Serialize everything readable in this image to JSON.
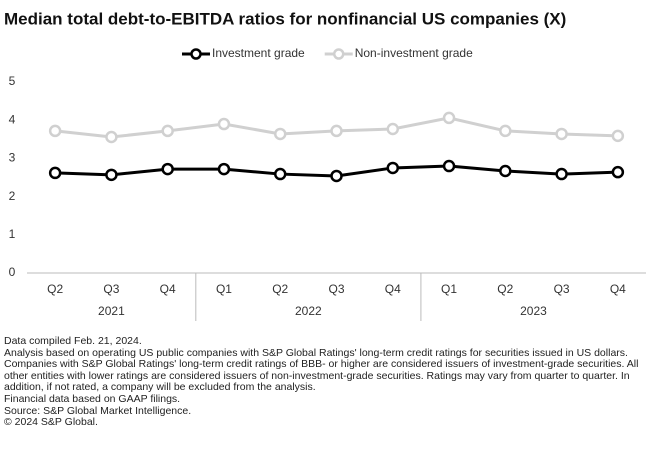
{
  "chart_data": {
    "type": "line",
    "title": "Median total debt-to-EBITDA ratios for nonfinancial US companies (X)",
    "groups": [
      {
        "label": "2021",
        "categories": [
          "Q2",
          "Q3",
          "Q4"
        ]
      },
      {
        "label": "2022",
        "categories": [
          "Q1",
          "Q2",
          "Q3",
          "Q4"
        ]
      },
      {
        "label": "2023",
        "categories": [
          "Q1",
          "Q2",
          "Q3",
          "Q4"
        ]
      }
    ],
    "series": [
      {
        "name": "Investment grade",
        "color": "#000000",
        "values": [
          2.62,
          2.57,
          2.72,
          2.72,
          2.59,
          2.54,
          2.75,
          2.8,
          2.67,
          2.59,
          2.64
        ]
      },
      {
        "name": "Non-investment grade",
        "color": "#d0d0d0",
        "values": [
          3.72,
          3.56,
          3.72,
          3.9,
          3.64,
          3.72,
          3.77,
          4.06,
          3.72,
          3.64,
          3.59
        ]
      }
    ],
    "ylim": [
      0,
      5
    ],
    "yticks": [
      0,
      1,
      2,
      3,
      4,
      5
    ],
    "grid": false,
    "legend": "top"
  },
  "notes": [
    "Data compiled Feb. 21, 2024.",
    "Analysis based on operating US public companies with S&P Global Ratings' long-term credit ratings for securities issued in US dollars.",
    "Companies with S&P Global Ratings' long-term credit ratings of BBB- or higher are considered issuers of investment-grade securities. All other entities with lower ratings are considered issuers of non-investment-grade securities. Ratings may vary from quarter to quarter. In addition, if not rated, a company will be excluded from the analysis.",
    "Financial data based on GAAP filings.",
    "Source: S&P Global Market Intelligence.",
    "© 2024 S&P Global."
  ]
}
